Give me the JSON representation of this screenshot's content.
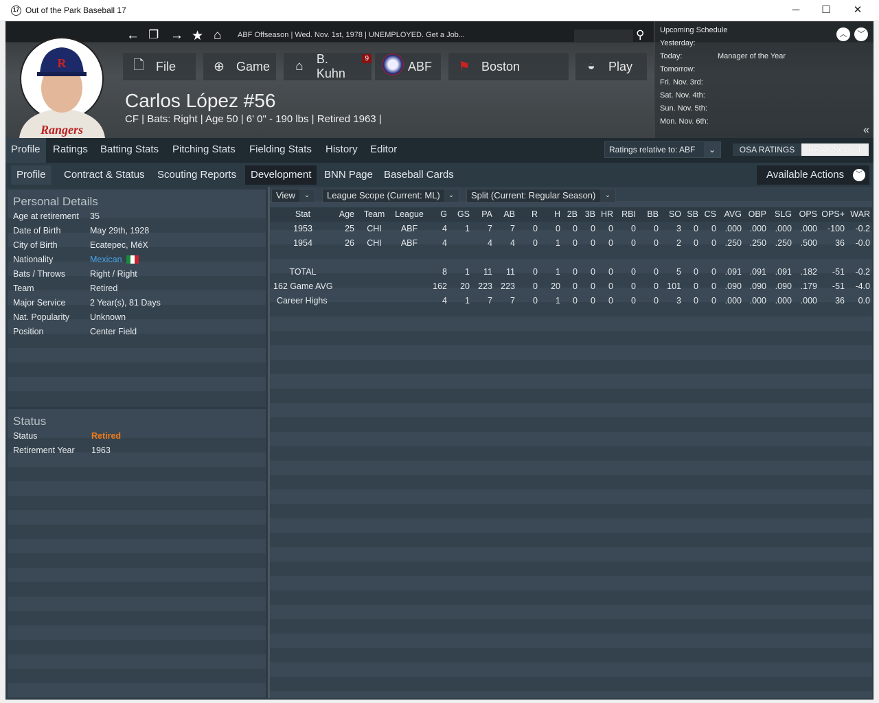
{
  "window": {
    "title": "Out of the Park Baseball 17",
    "logo": "17",
    "min": "─",
    "max": "☐",
    "close": "✕"
  },
  "header": {
    "breadcrumb": "ABF Offseason  |  Wed. Nov. 1st, 1978  |  UNEMPLOYED. Get a Job...",
    "menu": [
      {
        "icon": "file-icon",
        "label": "File"
      },
      {
        "icon": "globe-icon",
        "label": "Game"
      },
      {
        "icon": "home-icon",
        "label": "B. Kuhn",
        "badge": "9"
      },
      {
        "icon": "abf-logo-icon",
        "label": "ABF"
      },
      {
        "icon": "boston-logo-icon",
        "label": "Boston"
      },
      {
        "icon": "baseball-icon",
        "label": "Play"
      }
    ],
    "player_name": "Carlos López  #56",
    "player_info": "CF | Bats: Right  |  Age 50  |  6' 0\" - 190 lbs  |  Retired 1963  |"
  },
  "schedule": {
    "title": "Upcoming Schedule",
    "rows": [
      {
        "day": "Yesterday:",
        "event": ""
      },
      {
        "day": "Today:",
        "event": "Manager of the Year"
      },
      {
        "day": "Tomorrow:",
        "event": ""
      },
      {
        "day": "Fri. Nov. 3rd:",
        "event": ""
      },
      {
        "day": "Sat. Nov. 4th:",
        "event": ""
      },
      {
        "day": "Sun. Nov. 5th:",
        "event": ""
      },
      {
        "day": "Mon. Nov. 6th:",
        "event": ""
      }
    ]
  },
  "tabs": [
    "Profile",
    "Ratings",
    "Batting Stats",
    "Pitching Stats",
    "Fielding Stats",
    "History",
    "Editor"
  ],
  "ratings_relative": "Ratings relative to: ABF",
  "osa_ratings": "OSA RATINGS",
  "head_scout": "HEAD SCOUT",
  "subtabs": [
    "Profile",
    "Contract & Status",
    "Scouting Reports",
    "Development",
    "BNN Page",
    "Baseball Cards"
  ],
  "available_actions": "Available Actions",
  "personal": {
    "title": "Personal Details",
    "rows": [
      {
        "k": "Age at retirement",
        "v": "35"
      },
      {
        "k": "Date of Birth",
        "v": "May 29th, 1928"
      },
      {
        "k": "City of Birth",
        "v": "Ecatepec, MéX"
      },
      {
        "k": "Nationality",
        "v": "Mexican"
      },
      {
        "k": "Bats / Throws",
        "v": "Right / Right"
      },
      {
        "k": "Team",
        "v": "Retired"
      },
      {
        "k": "Major Service",
        "v": "2 Year(s), 81 Days"
      },
      {
        "k": "Nat. Popularity",
        "v": "Unknown"
      },
      {
        "k": "Position",
        "v": "Center Field"
      }
    ]
  },
  "status": {
    "title": "Status",
    "rows": [
      {
        "k": "Status",
        "v": "Retired"
      },
      {
        "k": "Retirement Year",
        "v": "1963"
      }
    ]
  },
  "colors": {
    "retired": "#f07a1a",
    "link": "#4aa3e8"
  },
  "filters": [
    "View",
    "League Scope  (Current: ML)",
    "Split  (Current: Regular Season)"
  ],
  "stats": {
    "columns": [
      "Stat",
      "Age",
      "Team",
      "League",
      "G",
      "GS",
      "PA",
      "AB",
      "R",
      "H",
      "2B",
      "3B",
      "HR",
      "RBI",
      "BB",
      "SO",
      "SB",
      "CS",
      "AVG",
      "OBP",
      "SLG",
      "OPS",
      "OPS+",
      "WAR"
    ],
    "rows": [
      [
        "1953",
        "25",
        "CHI",
        "ABF",
        "4",
        "1",
        "7",
        "7",
        "0",
        "0",
        "0",
        "0",
        "0",
        "0",
        "0",
        "3",
        "0",
        "0",
        ".000",
        ".000",
        ".000",
        ".000",
        "-100",
        "-0.2"
      ],
      [
        "1954",
        "26",
        "CHI",
        "ABF",
        "4",
        "",
        "4",
        "4",
        "0",
        "1",
        "0",
        "0",
        "0",
        "0",
        "0",
        "2",
        "0",
        "0",
        ".250",
        ".250",
        ".250",
        ".500",
        "36",
        "-0.0"
      ],
      [],
      [
        "TOTAL",
        "",
        "",
        "",
        "8",
        "1",
        "11",
        "11",
        "0",
        "1",
        "0",
        "0",
        "0",
        "0",
        "0",
        "5",
        "0",
        "0",
        ".091",
        ".091",
        ".091",
        ".182",
        "-51",
        "-0.2"
      ],
      [
        "162 Game AVG",
        "",
        "",
        "",
        "162",
        "20",
        "223",
        "223",
        "0",
        "20",
        "0",
        "0",
        "0",
        "0",
        "0",
        "101",
        "0",
        "0",
        ".090",
        ".090",
        ".090",
        ".179",
        "-51",
        "-4.0"
      ],
      [
        "Career Highs",
        "",
        "",
        "",
        "4",
        "1",
        "7",
        "7",
        "0",
        "1",
        "0",
        "0",
        "0",
        "0",
        "0",
        "3",
        "0",
        "0",
        ".000",
        ".000",
        ".000",
        ".000",
        "36",
        "0.0"
      ]
    ]
  }
}
